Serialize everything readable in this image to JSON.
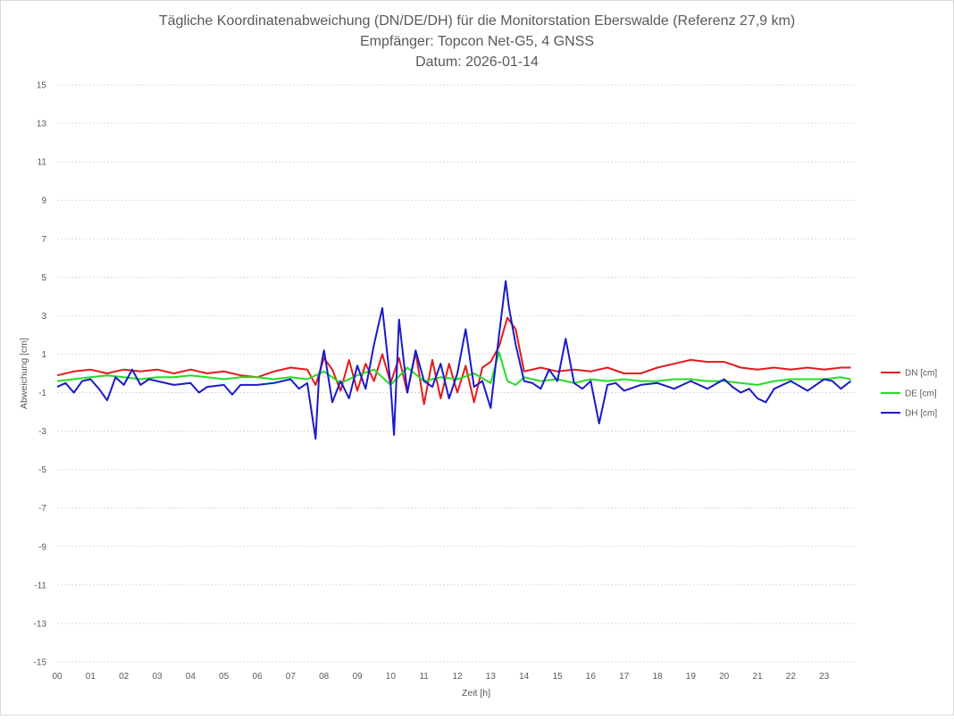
{
  "chart_data": {
    "type": "line",
    "title": "Tägliche Koordinatenabweichung (DN/DE/DH) für die Monitorstation Eberswalde (Referenz 27,9 km)",
    "subtitle_lines": [
      "Empfänger: Topcon Net-G5, 4 GNSS",
      "Datum: 2026-01-14"
    ],
    "xlabel": "Zeit [h]",
    "ylabel": "Abweichung [cm]",
    "xlim": [
      0,
      24
    ],
    "ylim": [
      -15,
      15
    ],
    "x_ticks": [
      "00",
      "01",
      "02",
      "03",
      "04",
      "05",
      "06",
      "07",
      "08",
      "09",
      "10",
      "11",
      "12",
      "13",
      "14",
      "15",
      "16",
      "17",
      "18",
      "19",
      "20",
      "21",
      "22",
      "23"
    ],
    "y_ticks": [
      "15",
      "13",
      "11",
      "9",
      "7",
      "5",
      "3",
      "1",
      "-1",
      "-3",
      "-5",
      "-7",
      "-9",
      "-11",
      "-13",
      "-15"
    ],
    "grid": "horizontal-dashed",
    "legend_position": "right",
    "series": [
      {
        "name": "DN [cm]",
        "color": "#e31a1c",
        "x": [
          0,
          0.5,
          1,
          1.5,
          2,
          2.5,
          3,
          3.5,
          4,
          4.5,
          5,
          5.5,
          6,
          6.5,
          7,
          7.5,
          7.75,
          8,
          8.25,
          8.5,
          8.75,
          9,
          9.25,
          9.5,
          9.75,
          10,
          10.25,
          10.5,
          10.75,
          11,
          11.25,
          11.5,
          11.75,
          12,
          12.25,
          12.5,
          12.75,
          13,
          13.25,
          13.5,
          13.75,
          14,
          14.5,
          15,
          15.5,
          16,
          16.5,
          17,
          17.5,
          18,
          18.5,
          19,
          19.5,
          20,
          20.5,
          21,
          21.5,
          22,
          22.5,
          23,
          23.5,
          23.8
        ],
        "y": [
          -0.1,
          0.1,
          0.2,
          0.0,
          0.2,
          0.1,
          0.2,
          0.0,
          0.2,
          0.0,
          0.1,
          -0.1,
          -0.2,
          0.1,
          0.3,
          0.2,
          -0.6,
          0.8,
          0.2,
          -0.9,
          0.7,
          -0.9,
          0.5,
          -0.4,
          1.0,
          -0.5,
          0.8,
          -1.0,
          1.1,
          -1.6,
          0.7,
          -1.3,
          0.5,
          -1.0,
          0.4,
          -1.5,
          0.3,
          0.6,
          1.4,
          2.9,
          2.3,
          0.1,
          0.3,
          0.1,
          0.2,
          0.1,
          0.3,
          0.0,
          0.0,
          0.3,
          0.5,
          0.7,
          0.6,
          0.6,
          0.3,
          0.2,
          0.3,
          0.2,
          0.3,
          0.2,
          0.3,
          0.3
        ]
      },
      {
        "name": "DE [cm]",
        "color": "#22dd22",
        "x": [
          0,
          0.5,
          1,
          1.5,
          2,
          2.5,
          3,
          3.5,
          4,
          4.5,
          5,
          5.5,
          6,
          6.5,
          7,
          7.5,
          8,
          8.5,
          9,
          9.5,
          10,
          10.5,
          11,
          11.5,
          12,
          12.5,
          13,
          13.25,
          13.5,
          13.75,
          14,
          14.5,
          15,
          15.5,
          16,
          16.5,
          17,
          17.5,
          18,
          18.5,
          19,
          19.5,
          20,
          20.5,
          21,
          21.5,
          22,
          22.5,
          23,
          23.5,
          23.8
        ],
        "y": [
          -0.4,
          -0.3,
          -0.2,
          -0.1,
          -0.2,
          -0.3,
          -0.2,
          -0.2,
          -0.1,
          -0.2,
          -0.3,
          -0.2,
          -0.2,
          -0.3,
          -0.2,
          -0.3,
          0.1,
          -0.5,
          -0.1,
          0.2,
          -0.6,
          0.3,
          -0.4,
          -0.2,
          -0.3,
          0.0,
          -0.5,
          1.1,
          -0.4,
          -0.6,
          -0.2,
          -0.4,
          -0.3,
          -0.5,
          -0.3,
          -0.4,
          -0.3,
          -0.4,
          -0.4,
          -0.3,
          -0.3,
          -0.4,
          -0.4,
          -0.5,
          -0.6,
          -0.4,
          -0.3,
          -0.3,
          -0.3,
          -0.2,
          -0.3
        ]
      },
      {
        "name": "DH [cm]",
        "color": "#1a1acc",
        "x": [
          0,
          0.25,
          0.5,
          0.75,
          1,
          1.25,
          1.5,
          1.75,
          2,
          2.25,
          2.5,
          2.75,
          3,
          3.5,
          4,
          4.25,
          4.5,
          5,
          5.25,
          5.5,
          6,
          6.5,
          7,
          7.25,
          7.5,
          7.75,
          7.85,
          8,
          8.25,
          8.5,
          8.75,
          9,
          9.25,
          9.5,
          9.75,
          10,
          10.1,
          10.25,
          10.5,
          10.75,
          11,
          11.25,
          11.5,
          11.75,
          12,
          12.25,
          12.5,
          12.75,
          13,
          13.25,
          13.45,
          13.55,
          13.75,
          14,
          14.25,
          14.5,
          14.75,
          15,
          15.25,
          15.5,
          15.75,
          16,
          16.25,
          16.5,
          16.75,
          17,
          17.5,
          18,
          18.5,
          19,
          19.5,
          20,
          20.25,
          20.5,
          20.75,
          21,
          21.25,
          21.5,
          22,
          22.5,
          23,
          23.25,
          23.5,
          23.8
        ],
        "y": [
          -0.7,
          -0.5,
          -1.0,
          -0.4,
          -0.3,
          -0.8,
          -1.4,
          -0.2,
          -0.6,
          0.2,
          -0.6,
          -0.3,
          -0.4,
          -0.6,
          -0.5,
          -1.0,
          -0.7,
          -0.6,
          -1.1,
          -0.6,
          -0.6,
          -0.5,
          -0.3,
          -0.8,
          -0.5,
          -3.4,
          -0.2,
          1.2,
          -1.5,
          -0.4,
          -1.3,
          0.4,
          -0.8,
          1.5,
          3.4,
          -0.6,
          -3.2,
          2.8,
          -1.0,
          1.2,
          -0.4,
          -0.7,
          0.5,
          -1.3,
          0.0,
          2.3,
          -0.7,
          -0.4,
          -1.8,
          2.0,
          4.8,
          3.4,
          1.5,
          -0.4,
          -0.5,
          -0.8,
          0.2,
          -0.4,
          1.8,
          -0.5,
          -0.8,
          -0.4,
          -2.6,
          -0.6,
          -0.5,
          -0.9,
          -0.6,
          -0.5,
          -0.8,
          -0.4,
          -0.8,
          -0.3,
          -0.7,
          -1.0,
          -0.8,
          -1.3,
          -1.5,
          -0.8,
          -0.4,
          -0.9,
          -0.3,
          -0.4,
          -0.8,
          -0.4
        ]
      }
    ]
  }
}
